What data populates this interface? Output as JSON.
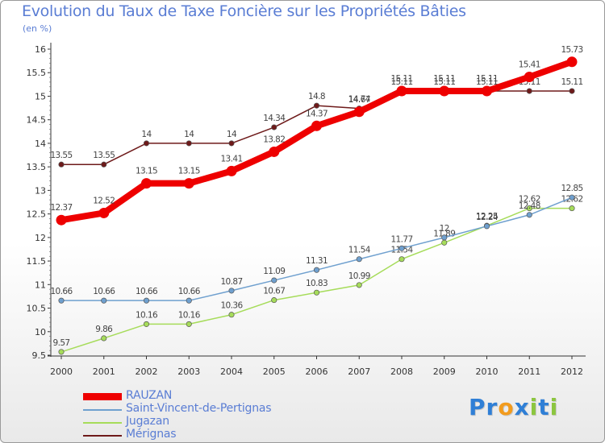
{
  "title": "Evolution du Taux de Taxe Foncière sur les Propriétés Bâties",
  "unit": "(en %)",
  "logo": {
    "text": "Proxiti",
    "letters": [
      "P",
      "r",
      "o",
      "x",
      "i",
      "t",
      "i"
    ],
    "colors": [
      "#2f7fd6",
      "#2f7fd6",
      "#f29b1d",
      "#2f7fd6",
      "#8cc63f",
      "#2f7fd6",
      "#8cc63f"
    ]
  },
  "chart_data": {
    "type": "line",
    "title": "Evolution du Taux de Taxe Foncière sur les Propriétés Bâties",
    "ylabel": "(en %)",
    "xlabel": "",
    "ylim": [
      9.5,
      16
    ],
    "yticks": [
      "9.5",
      "10",
      "10.5",
      "11",
      "11.5",
      "12",
      "12.5",
      "13",
      "13.5",
      "14",
      "14.5",
      "15",
      "15.5",
      "16"
    ],
    "categories": [
      "2000",
      "2001",
      "2002",
      "2003",
      "2004",
      "2005",
      "2006",
      "2007",
      "2008",
      "2009",
      "2010",
      "2011",
      "2012"
    ],
    "series": [
      {
        "name": "Mérignas",
        "color": "#6e1a1a",
        "values": [
          13.55,
          13.55,
          14,
          14,
          14,
          14.34,
          14.8,
          14.74,
          15.11,
          15.11,
          15.11,
          15.11,
          15.11
        ],
        "labels": [
          "13.55",
          "13.55",
          "14",
          "14",
          "14",
          "14.34",
          "14.8",
          "14.74",
          "15.11",
          "15.11",
          "15.11",
          "15.11",
          "15.11"
        ]
      },
      {
        "name": "Jugazan",
        "color": "#a6dc5a",
        "values": [
          9.57,
          9.86,
          10.16,
          10.16,
          10.36,
          10.67,
          10.83,
          10.99,
          11.54,
          11.89,
          12.25,
          12.62,
          12.62
        ],
        "labels": [
          "9.57",
          "9.86",
          "10.16",
          "10.16",
          "10.36",
          "10.67",
          "10.83",
          "10.99",
          "11.54",
          "11.89",
          "12.25",
          "12.62",
          "12.62"
        ]
      },
      {
        "name": "Saint-Vincent-de-Pertignas",
        "color": "#6fa0cf",
        "values": [
          10.66,
          10.66,
          10.66,
          10.66,
          10.87,
          11.09,
          11.31,
          11.54,
          11.77,
          12,
          12.24,
          12.48,
          12.85
        ],
        "labels": [
          "10.66",
          "10.66",
          "10.66",
          "10.66",
          "10.87",
          "11.09",
          "11.31",
          "11.54",
          "11.77",
          "12",
          "12.24",
          "12.48",
          "12.85"
        ]
      },
      {
        "name": "RAUZAN",
        "color": "#ee0000",
        "values": [
          12.37,
          12.52,
          13.15,
          13.15,
          13.41,
          13.82,
          14.37,
          14.67,
          15.11,
          15.11,
          15.11,
          15.41,
          15.73
        ],
        "labels": [
          "12.37",
          "12.52",
          "13.15",
          "13.15",
          "13.41",
          "13.82",
          "14.37",
          "14.67",
          "15.11",
          "15.11",
          "15.11",
          "15.41",
          "15.73"
        ]
      }
    ],
    "legend": [
      "RAUZAN",
      "Saint-Vincent-de-Pertignas",
      "Jugazan",
      "Mérignas"
    ],
    "legend_position": "bottom-left",
    "grid": false
  }
}
